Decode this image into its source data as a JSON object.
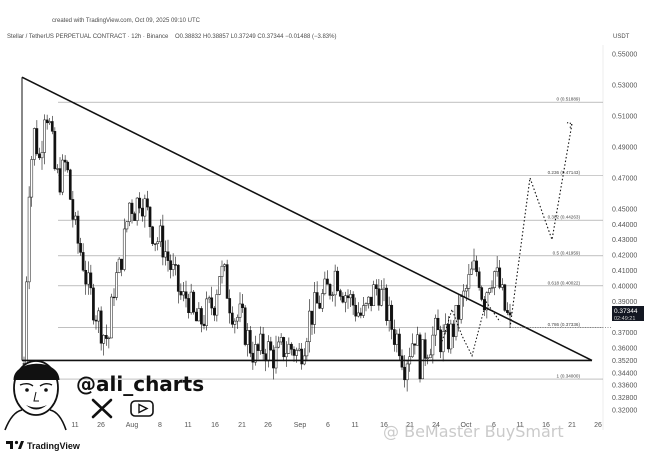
{
  "header": {
    "created_line": "created with TradingView.com, Oct 09, 2025 09:10 UTC",
    "symbol_line": "Stellar / TetherUS PERPETUAL CONTRACT · 12h · Binance",
    "ohlc": "O0.38832 H0.38857 L0.37249 C0.37344 −0.01488 (−3.83%)",
    "currency": "USDT"
  },
  "branding": {
    "handle": "@ali_charts",
    "platform": "TradingView",
    "watermark": "@ BeMaster BuySmart",
    "x_icon": "x-logo-icon",
    "video_icon": "play-button-icon"
  },
  "price_tag": {
    "price": "0.37344",
    "countdown": "02:49:21"
  },
  "colors": {
    "up_candle": "#ffffff",
    "down_candle": "#111111",
    "price_tag": "#131722",
    "line": "#111111",
    "fib_line": "#9a9a9a"
  },
  "chart_data": {
    "type": "candlestick",
    "title": "Stellar / TetherUS PERPETUAL CONTRACT · 12h · Binance",
    "ylabel": "USDT",
    "ylim": [
      0.312,
      0.56
    ],
    "y_ticks": [
      "0.55000",
      "0.53000",
      "0.51000",
      "0.49000",
      "0.47000",
      "0.45000",
      "0.44000",
      "0.43000",
      "0.42000",
      "0.41000",
      "0.40000",
      "0.39000",
      "0.38000",
      "0.37000",
      "0.36000",
      "0.35200",
      "0.34400",
      "0.33600",
      "0.32800",
      "0.32000"
    ],
    "x_ticks": [
      "11",
      "26",
      "Aug",
      "8",
      "11",
      "16",
      "21",
      "26",
      "Sep",
      "6",
      "11",
      "16",
      "21",
      "24",
      "Oct",
      "6",
      "11",
      "16",
      "21",
      "26"
    ],
    "fib_levels": [
      {
        "label": "0 (0.51889)",
        "value": 0.51889
      },
      {
        "label": "0.236 (0.47143)",
        "value": 0.47143
      },
      {
        "label": "0.382 (0.44263)",
        "value": 0.44263
      },
      {
        "label": "0.5 (0.41959)",
        "value": 0.41959
      },
      {
        "label": "0.618 (0.40022)",
        "value": 0.40022
      },
      {
        "label": "0.786 (0.37336)",
        "value": 0.37336
      },
      {
        "label": "1 (0.34000)",
        "value": 0.34
      }
    ],
    "last_price": 0.37344,
    "ohlc": {
      "open": 0.38832,
      "high": 0.38857,
      "low": 0.37249,
      "close": 0.37344,
      "change": -0.01488,
      "change_pct": -3.83
    },
    "price_points": [
      0.35,
      0.47,
      0.5,
      0.48,
      0.52,
      0.5,
      0.47,
      0.47,
      0.48,
      0.45,
      0.43,
      0.42,
      0.4,
      0.39,
      0.38,
      0.37,
      0.365,
      0.4,
      0.41,
      0.43,
      0.455,
      0.45,
      0.46,
      0.45,
      0.44,
      0.43,
      0.43,
      0.42,
      0.41,
      0.4,
      0.39,
      0.395,
      0.38,
      0.375,
      0.38,
      0.385,
      0.39,
      0.41,
      0.405,
      0.39,
      0.38,
      0.38,
      0.37,
      0.36,
      0.355,
      0.36,
      0.36,
      0.355,
      0.355,
      0.36,
      0.36,
      0.36,
      0.355,
      0.365,
      0.38,
      0.385,
      0.39,
      0.395,
      0.4,
      0.41,
      0.4,
      0.395,
      0.39,
      0.385,
      0.38,
      0.385,
      0.395,
      0.4,
      0.39,
      0.38,
      0.37,
      0.365,
      0.35,
      0.36,
      0.37,
      0.35,
      0.36,
      0.365,
      0.37,
      0.365,
      0.365,
      0.37,
      0.38,
      0.39,
      0.4,
      0.41,
      0.41,
      0.39,
      0.405,
      0.41,
      0.4,
      0.385,
      0.375
    ],
    "triangle": {
      "upper": [
        {
          "date": "11",
          "price": 0.535
        },
        {
          "date": "16",
          "price": 0.352
        }
      ],
      "lower": [
        {
          "date": "11",
          "price": 0.352
        },
        {
          "date": "16",
          "price": 0.352
        }
      ]
    },
    "projection": [
      {
        "price": 0.373
      },
      {
        "price": 0.47
      },
      {
        "price": 0.43
      },
      {
        "price": 0.505
      }
    ],
    "grid": false,
    "legend": "none"
  }
}
